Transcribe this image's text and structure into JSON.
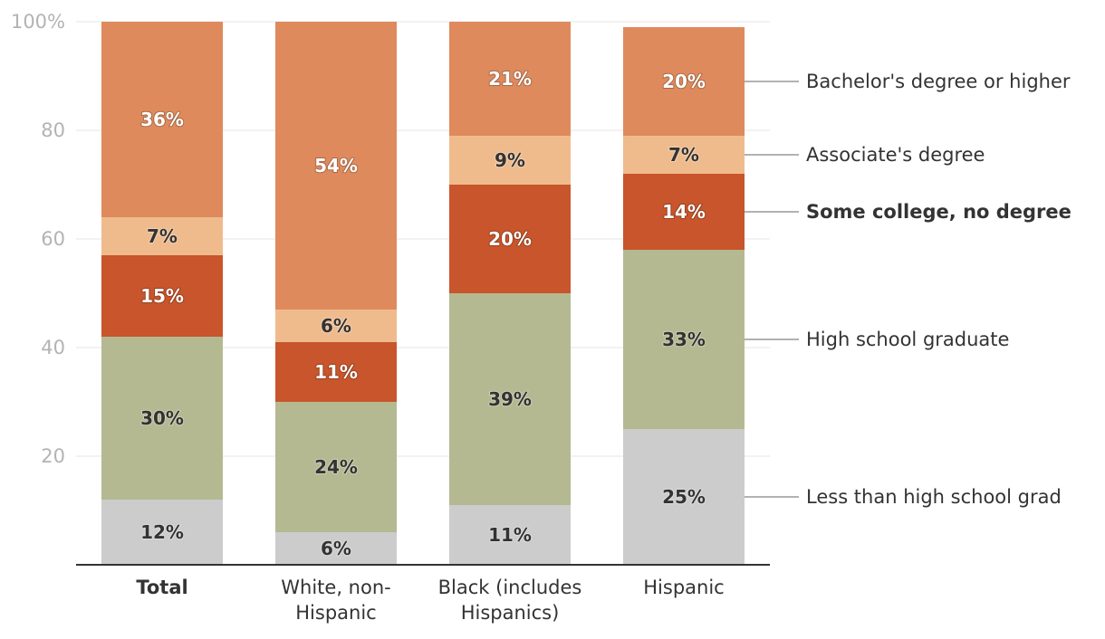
{
  "chart_data": {
    "type": "bar",
    "stacked": true,
    "title": "",
    "xlabel": "",
    "ylabel": "",
    "ylim": [
      0,
      100
    ],
    "yticks": [
      20,
      40,
      60,
      80,
      100
    ],
    "ytick_labels": [
      "20",
      "40",
      "60",
      "80",
      "100%"
    ],
    "grid": true,
    "legend_position": "right",
    "categories": [
      "Total",
      "White, non-Hispanic",
      "Black (includes Hispanics)",
      "Hispanic"
    ],
    "category_lines": [
      [
        "Total"
      ],
      [
        "White, non-",
        "Hispanic"
      ],
      [
        "Black (includes",
        "Hispanics)"
      ],
      [
        "Hispanic"
      ]
    ],
    "bold_category": "Total",
    "series": [
      {
        "name": "Less than high school grad",
        "color": "#cccccc",
        "text_color": "#333333",
        "values": [
          12,
          6,
          11,
          25
        ],
        "labels": [
          "12%",
          "6%",
          "11%",
          "25%"
        ]
      },
      {
        "name": "High school graduate",
        "color": "#b4b991",
        "text_color": "#333333",
        "values": [
          30,
          24,
          39,
          33
        ],
        "labels": [
          "30%",
          "24%",
          "39%",
          "33%"
        ]
      },
      {
        "name": "Some college, no degree",
        "color": "#c8552b",
        "text_color": "#ffffff",
        "bold_legend": true,
        "values": [
          15,
          11,
          20,
          14
        ],
        "labels": [
          "15%",
          "11%",
          "20%",
          "14%"
        ]
      },
      {
        "name": "Associate's degree",
        "color": "#efbb8c",
        "text_color": "#333333",
        "values": [
          7,
          6,
          9,
          7
        ],
        "labels": [
          "7%",
          "6%",
          "9%",
          "7%"
        ]
      },
      {
        "name": "Bachelor's degree or higher",
        "color": "#df8a5c",
        "text_color": "#ffffff",
        "values": [
          36,
          54,
          21,
          20
        ],
        "labels": [
          "36%",
          "54%",
          "21%",
          "20%"
        ]
      }
    ],
    "colors": {
      "grid": "#e6e6e6",
      "axis": "#333333",
      "tick_text": "#b3b3b3",
      "leader": "#999999"
    }
  }
}
